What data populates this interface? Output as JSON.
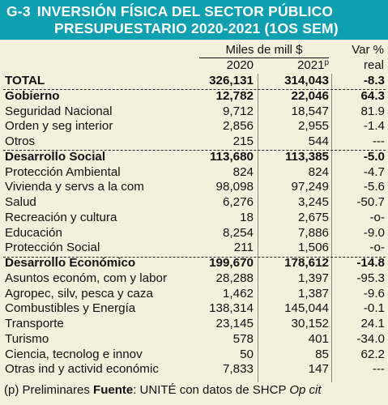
{
  "header": {
    "code": "G-3",
    "title_line1": "INVERSIÓN FÍSICA DEL SECTOR PÚBLICO",
    "title_line2": "PRESUPUESTARIO 2020-2021 (1OS SEM)"
  },
  "columns": {
    "unit": "Miles de mill $",
    "year_2020": "2020",
    "year_2021": "2021",
    "year_2021_sup": "p",
    "var_line1": "Var %",
    "var_line2": "real"
  },
  "rows": [
    {
      "label": "TOTAL",
      "v2020": "326,131",
      "v2021": "314,043",
      "var": "-8.3",
      "bold": true
    },
    {
      "label": "Gobierno",
      "v2020": "12,782",
      "v2021": "22,046",
      "var": "64.3",
      "bold": true
    },
    {
      "label": "Seguridad Nacional",
      "v2020": "9,712",
      "v2021": "18,547",
      "var": "81.9",
      "bold": false
    },
    {
      "label": "Orden y seg interior",
      "v2020": "2,856",
      "v2021": "2,955",
      "var": "-1.4",
      "bold": false
    },
    {
      "label": "Otros",
      "v2020": "215",
      "v2021": "544",
      "var": "---",
      "bold": false
    },
    {
      "label": "Desarrollo Social",
      "v2020": "113,680",
      "v2021": "113,385",
      "var": "-5.0",
      "bold": true
    },
    {
      "label": "Protección Ambiental",
      "v2020": "824",
      "v2021": "824",
      "var": "-4.7",
      "bold": false
    },
    {
      "label": "Vivienda y servs a la com",
      "v2020": "98,098",
      "v2021": "97,249",
      "var": "-5.6",
      "bold": false
    },
    {
      "label": "Salud",
      "v2020": "6,276",
      "v2021": "3,245",
      "var": "-50.7",
      "bold": false
    },
    {
      "label": "Recreación y cultura",
      "v2020": "18",
      "v2021": "2,675",
      "var": "-o-",
      "bold": false
    },
    {
      "label": "Educación",
      "v2020": "8,254",
      "v2021": "7,886",
      "var": "-9.0",
      "bold": false
    },
    {
      "label": "Protección Social",
      "v2020": "211",
      "v2021": "1,506",
      "var": "-o-",
      "bold": false
    },
    {
      "label": "Desarrollo Económico",
      "v2020": "199,670",
      "v2021": "178,612",
      "var": "-14.8",
      "bold": true
    },
    {
      "label": "Asuntos económ, com y labor",
      "v2020": "28,288",
      "v2021": "1,397",
      "var": "-95.3",
      "bold": false
    },
    {
      "label": "Agropec, silv, pesca y caza",
      "v2020": "1,462",
      "v2021": "1,387",
      "var": "-9.6",
      "bold": false
    },
    {
      "label": "Combustibles y Energía",
      "v2020": "138,314",
      "v2021": "145,044",
      "var": "-0.1",
      "bold": false
    },
    {
      "label": "Transporte",
      "v2020": "23,145",
      "v2021": "30,152",
      "var": "24.1",
      "bold": false
    },
    {
      "label": "Turismo",
      "v2020": "578",
      "v2021": "401",
      "var": "-34.0",
      "bold": false
    },
    {
      "label": "Ciencia, tecnolog e innov",
      "v2020": "50",
      "v2021": "85",
      "var": "62.2",
      "bold": false
    },
    {
      "label": "Otras ind y activid económic",
      "v2020": "7,833",
      "v2021": "147",
      "var": "---",
      "bold": false
    }
  ],
  "footer": {
    "note": "(p) Preliminares ",
    "source_label": "Fuente",
    "source_text": ": UNITÉ con datos de SHCP ",
    "source_cite": "Op cit"
  }
}
